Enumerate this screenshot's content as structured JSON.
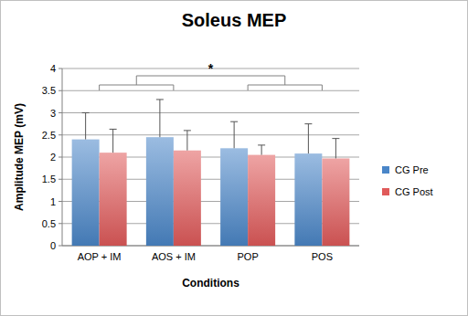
{
  "chart_data": {
    "type": "bar",
    "title": "Soleus MEP",
    "x_label": "Conditions",
    "y_label": "Amplitude MEP (mV)",
    "categories": [
      "AOP + IM",
      "AOS + IM",
      "POP",
      "POS"
    ],
    "series": [
      {
        "name": "CG Pre",
        "color": "#4a86c8",
        "values": [
          2.4,
          2.45,
          2.2,
          2.08
        ],
        "errors": [
          0.6,
          0.85,
          0.6,
          0.67
        ]
      },
      {
        "name": "CG Post",
        "color": "#e05a5a",
        "values": [
          2.1,
          2.15,
          2.05,
          1.97
        ],
        "errors": [
          0.53,
          0.45,
          0.22,
          0.45
        ]
      }
    ],
    "ylim": [
      0,
      4
    ],
    "yticks": [
      0,
      0.5,
      1,
      1.5,
      2,
      2.5,
      3,
      3.5,
      4
    ],
    "grid": true,
    "legend": "right",
    "annotations": [
      "*"
    ]
  }
}
